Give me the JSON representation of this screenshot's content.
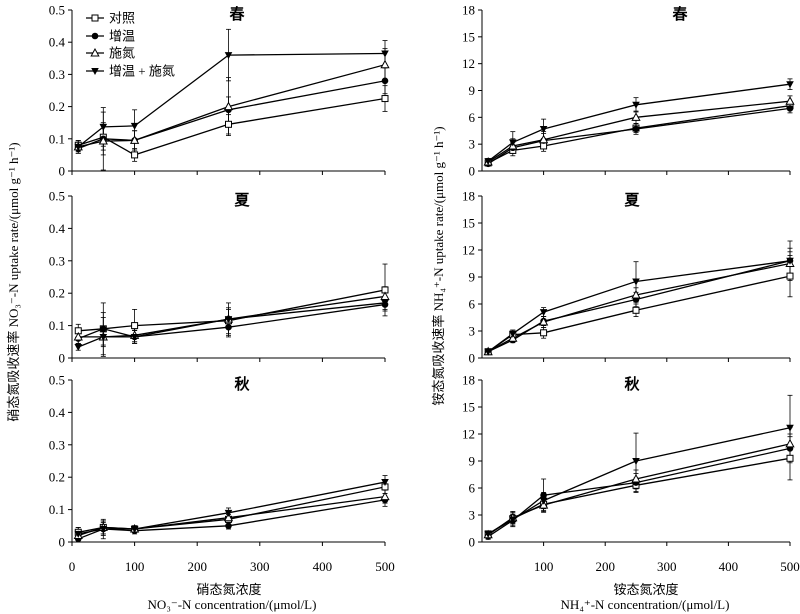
{
  "axes": {
    "y_left_title": "硝态氮吸收速率 NO₃⁻-N uptake rate/(μmol g⁻¹ h⁻¹)",
    "y_right_title": "铵态氮吸收速率 NH₄⁺-N uptake rate/(μmol g⁻¹ h⁻¹)",
    "x_left_title_cn": "硝态氮浓度",
    "x_left_title_en": "NO₃⁻-N concentration/(μmol/L)",
    "x_right_title_cn": "铵态氮浓度",
    "x_right_title_en": "NH₄⁺-N concentration/(μmol/L)"
  },
  "chart_data": [
    {
      "type": "line",
      "title": "春",
      "legend": "top-left",
      "x": [
        10,
        50,
        100,
        250,
        500
      ],
      "xlim": [
        0,
        500
      ],
      "xticks": [
        0,
        100,
        200,
        300,
        400,
        500
      ],
      "ylim": [
        0,
        0.5
      ],
      "yticks": [
        0,
        0.1,
        0.2,
        0.3,
        0.4,
        0.5
      ],
      "yticklabels": [
        "0",
        "0.1",
        "0.2",
        "0.3",
        "0.4",
        "0.5"
      ],
      "series": [
        {
          "name": "对照",
          "marker": "open-square",
          "values": [
            0.08,
            0.105,
            0.05,
            0.145,
            0.225
          ],
          "errors": [
            0.015,
            0.04,
            0.02,
            0.03,
            0.04
          ]
        },
        {
          "name": "增温",
          "marker": "filled-circle",
          "values": [
            0.07,
            0.1,
            0.095,
            0.19,
            0.28
          ],
          "errors": [
            0.015,
            0.05,
            0.03,
            0.04,
            0.04
          ]
        },
        {
          "name": "施氮",
          "marker": "open-triangle",
          "values": [
            0.075,
            0.093,
            0.095,
            0.2,
            0.33
          ],
          "errors": [
            0.02,
            0.09,
            0.03,
            0.09,
            0.05
          ]
        },
        {
          "name": "增温 + 施氮",
          "marker": "filled-inverted-triangle",
          "values": [
            0.075,
            0.137,
            0.14,
            0.36,
            0.365
          ],
          "errors": [
            0.015,
            0.06,
            0.05,
            0.08,
            0.04
          ]
        }
      ]
    },
    {
      "type": "line",
      "title": "春",
      "x": [
        10,
        50,
        100,
        250,
        500
      ],
      "xlim": [
        0,
        500
      ],
      "xticks": [
        100,
        200,
        300,
        400,
        500
      ],
      "ylim": [
        0,
        18
      ],
      "yticks": [
        0,
        3,
        6,
        9,
        12,
        15,
        18
      ],
      "yticklabels": [
        "0",
        "3",
        "6",
        "9",
        "12",
        "15",
        "18"
      ],
      "series": [
        {
          "name": "对照",
          "marker": "open-square",
          "values": [
            0.9,
            2.3,
            2.8,
            4.8,
            7.3
          ],
          "errors": [
            0.2,
            0.6,
            0.6,
            0.5,
            0.5
          ]
        },
        {
          "name": "增温",
          "marker": "filled-circle",
          "values": [
            0.8,
            2.6,
            3.4,
            4.7,
            7.0
          ],
          "errors": [
            0.2,
            0.6,
            0.8,
            0.6,
            0.5
          ]
        },
        {
          "name": "施氮",
          "marker": "open-triangle",
          "values": [
            1.0,
            2.8,
            3.5,
            6.0,
            7.8
          ],
          "errors": [
            0.2,
            0.8,
            0.9,
            0.7,
            0.6
          ]
        },
        {
          "name": "增温 + 施氮",
          "marker": "filled-inverted-triangle",
          "values": [
            1.1,
            3.2,
            4.7,
            7.4,
            9.7
          ],
          "errors": [
            0.3,
            1.2,
            1.1,
            0.8,
            0.6
          ]
        }
      ]
    },
    {
      "type": "line",
      "title": "夏",
      "x": [
        10,
        50,
        100,
        250,
        500
      ],
      "xlim": [
        0,
        500
      ],
      "xticks": [
        0,
        100,
        200,
        300,
        400,
        500
      ],
      "ylim": [
        0,
        0.5
      ],
      "yticks": [
        0,
        0.1,
        0.2,
        0.3,
        0.4,
        0.5
      ],
      "yticklabels": [
        "0",
        "0.1",
        "0.2",
        "0.3",
        "0.4",
        "0.5"
      ],
      "series": [
        {
          "name": "对照",
          "marker": "open-square",
          "values": [
            0.084,
            0.09,
            0.1,
            0.115,
            0.21
          ],
          "errors": [
            0.02,
            0.05,
            0.05,
            0.04,
            0.08
          ]
        },
        {
          "name": "增温",
          "marker": "filled-circle",
          "values": [
            0.06,
            0.09,
            0.065,
            0.095,
            0.165
          ],
          "errors": [
            0.02,
            0.08,
            0.02,
            0.03,
            0.02
          ]
        },
        {
          "name": "施氮",
          "marker": "open-triangle",
          "values": [
            0.065,
            0.065,
            0.07,
            0.12,
            0.19
          ],
          "errors": [
            0.02,
            0.03,
            0.02,
            0.03,
            0.03
          ]
        },
        {
          "name": "增温 + 施氮",
          "marker": "filled-inverted-triangle",
          "values": [
            0.034,
            0.065,
            0.065,
            0.12,
            0.17
          ],
          "errors": [
            0.01,
            0.06,
            0.02,
            0.05,
            0.02
          ]
        }
      ]
    },
    {
      "type": "line",
      "title": "夏",
      "x": [
        10,
        50,
        100,
        250,
        500
      ],
      "xlim": [
        0,
        500
      ],
      "xticks": [
        100,
        200,
        300,
        400,
        500
      ],
      "ylim": [
        0,
        18
      ],
      "yticks": [
        0,
        3,
        6,
        9,
        12,
        15,
        18
      ],
      "yticklabels": [
        "0",
        "3",
        "6",
        "9",
        "12",
        "15",
        "18"
      ],
      "series": [
        {
          "name": "对照",
          "marker": "open-square",
          "values": [
            0.7,
            2.6,
            2.8,
            5.3,
            9.1
          ],
          "errors": [
            0.1,
            0.5,
            0.6,
            0.7,
            2.3
          ]
        },
        {
          "name": "增温",
          "marker": "filled-circle",
          "values": [
            0.7,
            2.0,
            4.1,
            6.5,
            10.8
          ],
          "errors": [
            0.1,
            0.3,
            0.5,
            0.8,
            1.4
          ]
        },
        {
          "name": "施氮",
          "marker": "open-triangle",
          "values": [
            0.7,
            2.2,
            4.0,
            7.0,
            10.5
          ],
          "errors": [
            0.1,
            0.4,
            0.6,
            0.8,
            1.3
          ]
        },
        {
          "name": "增温 + 施氮",
          "marker": "filled-inverted-triangle",
          "values": [
            0.7,
            2.7,
            5.1,
            8.5,
            10.8
          ],
          "errors": [
            0.1,
            0.4,
            0.5,
            2.2,
            2.2
          ]
        }
      ]
    },
    {
      "type": "line",
      "title": "秋",
      "x": [
        10,
        50,
        100,
        250,
        500
      ],
      "xlim": [
        0,
        500
      ],
      "xticks": [
        0,
        100,
        200,
        300,
        400,
        500
      ],
      "xticklabels": [
        "0",
        "100",
        "200",
        "300",
        "400",
        "500"
      ],
      "ylim": [
        0,
        0.5
      ],
      "yticks": [
        0,
        0.1,
        0.2,
        0.3,
        0.4,
        0.5
      ],
      "yticklabels": [
        "0",
        "0.1",
        "0.2",
        "0.3",
        "0.4",
        "0.5"
      ],
      "series": [
        {
          "name": "对照",
          "marker": "open-square",
          "values": [
            0.03,
            0.045,
            0.04,
            0.07,
            0.17
          ],
          "errors": [
            0.015,
            0.02,
            0.01,
            0.015,
            0.02
          ]
        },
        {
          "name": "增温",
          "marker": "filled-circle",
          "values": [
            0.01,
            0.04,
            0.035,
            0.05,
            0.13
          ],
          "errors": [
            0.01,
            0.02,
            0.01,
            0.01,
            0.02
          ]
        },
        {
          "name": "施氮",
          "marker": "open-triangle",
          "values": [
            0.02,
            0.045,
            0.04,
            0.075,
            0.14
          ],
          "errors": [
            0.015,
            0.02,
            0.01,
            0.02,
            0.02
          ]
        },
        {
          "name": "增温 + 施氮",
          "marker": "filled-inverted-triangle",
          "values": [
            0.025,
            0.04,
            0.04,
            0.09,
            0.185
          ],
          "errors": [
            0.02,
            0.03,
            0.01,
            0.015,
            0.02
          ]
        }
      ]
    },
    {
      "type": "line",
      "title": "秋",
      "x": [
        10,
        50,
        100,
        250,
        500
      ],
      "xlim": [
        0,
        500
      ],
      "xticks": [
        100,
        200,
        300,
        400,
        500
      ],
      "xticklabels": [
        "100",
        "200",
        "300",
        "400",
        "500"
      ],
      "ylim": [
        0,
        18
      ],
      "yticks": [
        0,
        3,
        6,
        9,
        12,
        15,
        18
      ],
      "yticklabels": [
        "0",
        "3",
        "6",
        "9",
        "12",
        "15",
        "18"
      ],
      "series": [
        {
          "name": "对照",
          "marker": "open-square",
          "values": [
            0.9,
            2.6,
            4.2,
            6.3,
            9.3
          ],
          "errors": [
            0.3,
            0.5,
            0.7,
            0.8,
            2.4
          ]
        },
        {
          "name": "增温",
          "marker": "filled-circle",
          "values": [
            0.6,
            2.4,
            5.2,
            6.6,
            10.4
          ],
          "errors": [
            0.3,
            0.6,
            1.8,
            1.0,
            1.6
          ]
        },
        {
          "name": "施氮",
          "marker": "open-triangle",
          "values": [
            0.8,
            2.7,
            4.1,
            7.0,
            10.9
          ],
          "errors": [
            0.3,
            0.7,
            0.8,
            1.0,
            1.8
          ]
        },
        {
          "name": "增温 + 施氮",
          "marker": "filled-inverted-triangle",
          "values": [
            0.9,
            2.5,
            4.6,
            9.0,
            12.7
          ],
          "errors": [
            0.3,
            0.8,
            0.9,
            3.1,
            3.6
          ]
        }
      ]
    }
  ]
}
